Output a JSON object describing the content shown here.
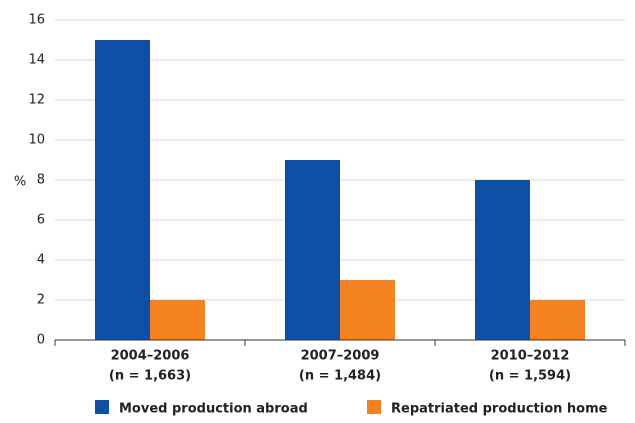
{
  "chart_data": {
    "type": "bar",
    "y_label": "%",
    "categories": [
      [
        "2004–2006",
        "(n = 1,663)"
      ],
      [
        "2007–2009",
        "(n = 1,484)"
      ],
      [
        "2010–2012",
        "(n = 1,594)"
      ]
    ],
    "series": [
      {
        "name": "Moved production abroad",
        "color": "#0d4ea6",
        "values": [
          15,
          9,
          8
        ]
      },
      {
        "name": "Repatriated production home",
        "color": "#f58220",
        "values": [
          2,
          3,
          2
        ]
      }
    ],
    "ylim": [
      0,
      16
    ],
    "yticks": [
      0,
      2,
      4,
      6,
      8,
      10,
      12,
      14,
      16
    ],
    "grid": true
  }
}
